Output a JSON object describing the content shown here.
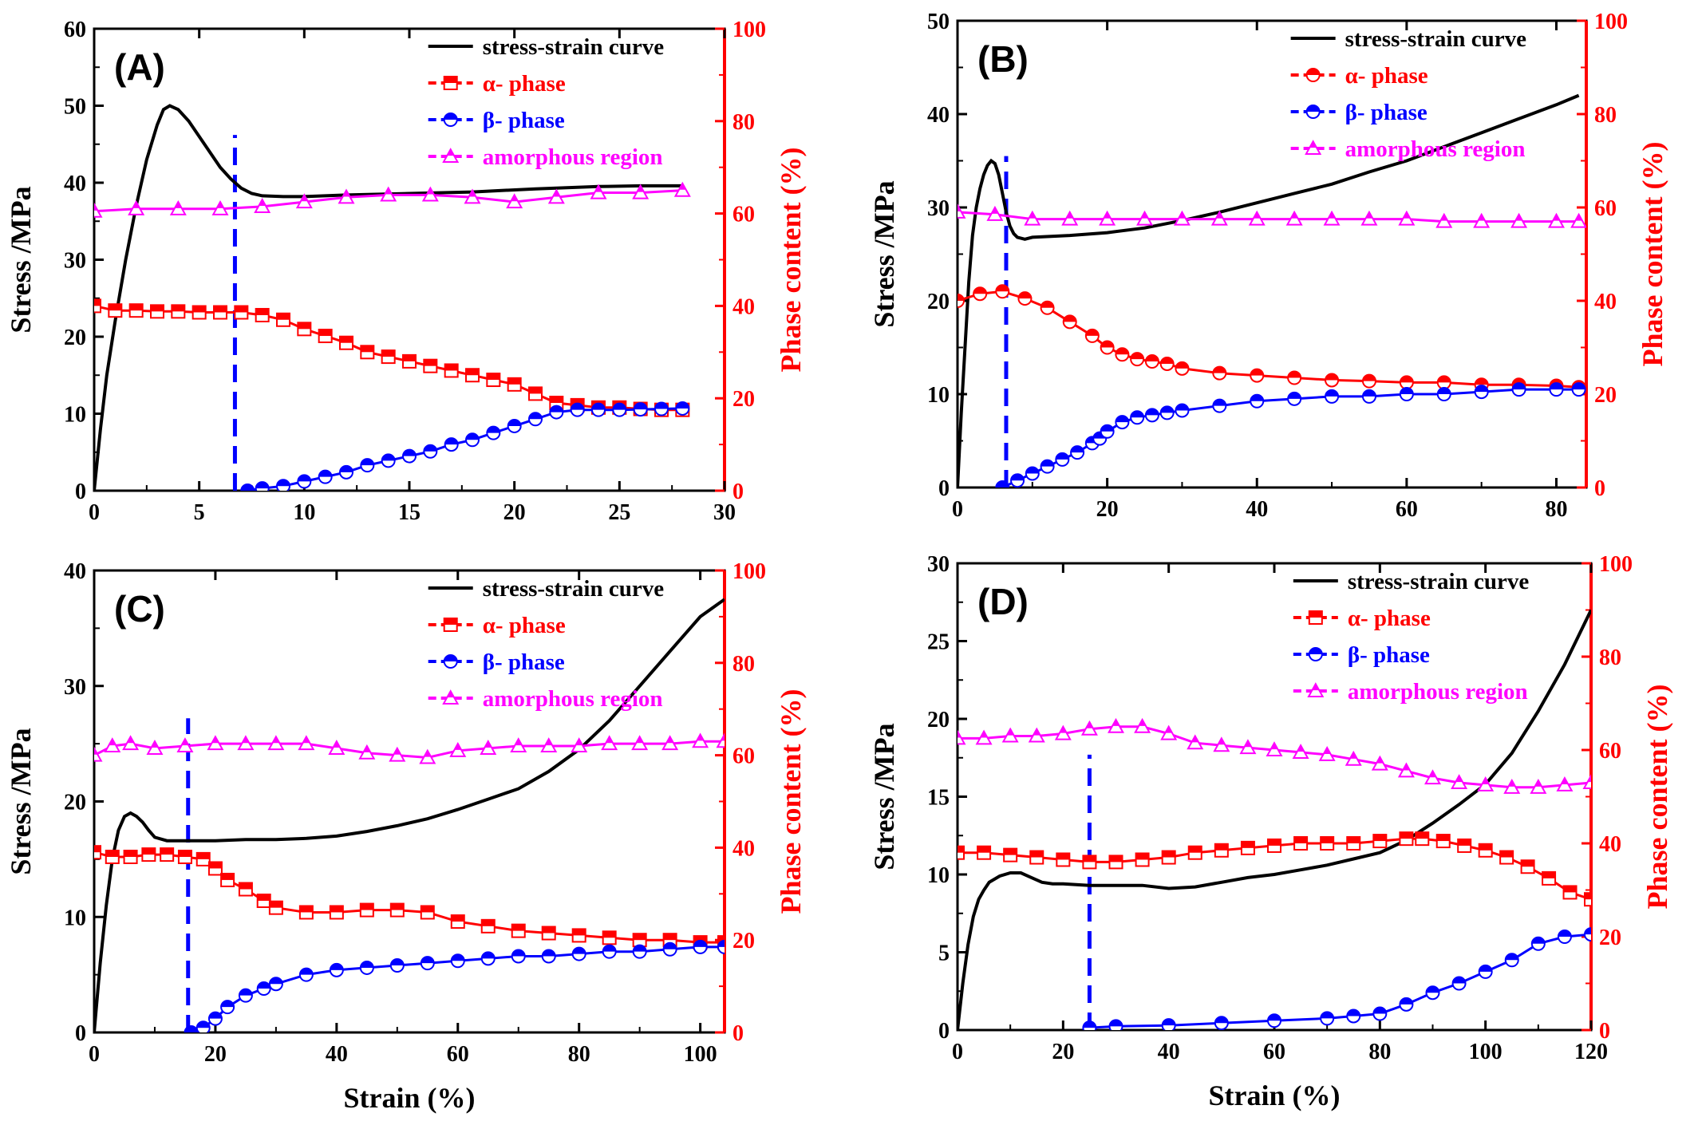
{
  "colors": {
    "stress": "#000000",
    "alpha": "#ff0000",
    "beta": "#0000ff",
    "amorphous": "#ff00ff",
    "right_axis": "#ff0000",
    "marker_line": "#0000ff"
  },
  "legend_labels": {
    "stress": "stress-strain curve",
    "alpha": "α- phase",
    "beta": "β- phase",
    "amorphous": "amorphous region"
  },
  "chart_data": [
    {
      "type": "line",
      "panel_label": "(A)",
      "xlabel": "",
      "ylabel": "Stress /MPa",
      "y2label": "Phase content (%)",
      "xlim": [
        0,
        30
      ],
      "xticks": [
        0,
        5,
        10,
        15,
        20,
        25,
        30
      ],
      "ylim": [
        0,
        60
      ],
      "yticks": [
        0,
        10,
        20,
        30,
        40,
        50,
        60
      ],
      "y2lim": [
        0,
        100
      ],
      "y2ticks": [
        0,
        20,
        40,
        60,
        80,
        100
      ],
      "legend_position": "top-right",
      "vline_x": 6.7,
      "vline_y2_range": [
        0,
        77
      ],
      "series": [
        {
          "key": "stress",
          "axis": "left",
          "marker": "none",
          "x": [
            0,
            0.3,
            0.6,
            1,
            1.5,
            2,
            2.5,
            3,
            3.3,
            3.6,
            4,
            4.5,
            5,
            5.5,
            6,
            6.5,
            7,
            7.5,
            8,
            9,
            10,
            12,
            15,
            18,
            21,
            24,
            26,
            28
          ],
          "y": [
            0,
            8,
            15,
            22,
            30,
            37,
            43,
            47.5,
            49.5,
            50,
            49.5,
            48,
            46,
            44,
            42,
            40.5,
            39.3,
            38.6,
            38.3,
            38.2,
            38.2,
            38.4,
            38.6,
            38.8,
            39.2,
            39.5,
            39.6,
            39.6
          ]
        },
        {
          "key": "alpha",
          "axis": "right",
          "marker": "square",
          "x": [
            0,
            1,
            2,
            3,
            4,
            5,
            6,
            7,
            8,
            9,
            10,
            11,
            12,
            13,
            14,
            15,
            16,
            17,
            18,
            19,
            20,
            21,
            22,
            23,
            24,
            25,
            26,
            27,
            28
          ],
          "y": [
            40,
            39,
            39,
            38.8,
            38.8,
            38.6,
            38.6,
            38.6,
            38,
            37,
            35,
            33.5,
            32,
            30,
            29,
            28,
            27,
            26,
            25,
            24,
            23,
            21,
            19,
            18.5,
            18,
            18,
            17.7,
            17.5,
            17.5
          ]
        },
        {
          "key": "beta",
          "axis": "right",
          "marker": "circle",
          "x": [
            7.3,
            8,
            9,
            10,
            11,
            12,
            13,
            14,
            15,
            16,
            17,
            18,
            19,
            20,
            21,
            22,
            23,
            24,
            25,
            26,
            27,
            28
          ],
          "y": [
            0,
            0.5,
            1,
            2,
            3,
            4,
            5.5,
            6.5,
            7.5,
            8.5,
            10,
            11,
            12.5,
            14,
            15.5,
            17,
            17.5,
            17.5,
            17.5,
            17.6,
            17.7,
            17.8
          ]
        },
        {
          "key": "amorphous",
          "axis": "right",
          "marker": "triangle",
          "x": [
            0,
            2,
            4,
            6,
            8,
            10,
            12,
            14,
            16,
            18,
            20,
            22,
            24,
            26,
            28
          ],
          "y": [
            60.5,
            61,
            61,
            61,
            61.5,
            62.5,
            63.5,
            64,
            64,
            63.5,
            62.5,
            63.5,
            64.5,
            64.5,
            65
          ]
        }
      ]
    },
    {
      "type": "line",
      "panel_label": "(B)",
      "xlabel": "",
      "ylabel": "Stress /MPa",
      "y2label": "Phase content (%)",
      "xlim": [
        0,
        84
      ],
      "xticks": [
        0,
        20,
        40,
        60,
        80
      ],
      "ylim": [
        0,
        50
      ],
      "yticks": [
        0,
        10,
        20,
        30,
        40,
        50
      ],
      "y2lim": [
        0,
        100
      ],
      "y2ticks": [
        0,
        20,
        40,
        60,
        80,
        100
      ],
      "legend_position": "top-right",
      "vline_x": 6.5,
      "vline_y2_range": [
        0,
        71
      ],
      "series": [
        {
          "key": "stress",
          "axis": "left",
          "marker": "none",
          "x": [
            0,
            0.5,
            1,
            1.5,
            2,
            2.5,
            3,
            3.5,
            4,
            4.5,
            5,
            5.5,
            6,
            6.5,
            7,
            7.5,
            8,
            9,
            10,
            15,
            20,
            25,
            30,
            35,
            40,
            45,
            50,
            55,
            60,
            65,
            70,
            75,
            80,
            83
          ],
          "y": [
            0,
            8,
            15,
            22,
            27,
            30,
            32,
            33.5,
            34.5,
            35,
            34.7,
            33.5,
            31.5,
            29.5,
            28,
            27.2,
            26.8,
            26.6,
            26.8,
            27,
            27.3,
            27.8,
            28.6,
            29.5,
            30.5,
            31.5,
            32.5,
            33.8,
            35,
            36.5,
            38,
            39.5,
            41,
            42
          ]
        },
        {
          "key": "alpha",
          "axis": "right",
          "marker": "half-circle",
          "x": [
            0,
            3,
            6,
            9,
            12,
            15,
            18,
            20,
            22,
            24,
            26,
            28,
            30,
            35,
            40,
            45,
            50,
            55,
            60,
            65,
            70,
            75,
            80,
            83
          ],
          "y": [
            40,
            41.5,
            42,
            40.5,
            38.5,
            35.5,
            32.5,
            30,
            28.5,
            27.5,
            27,
            26.5,
            25.5,
            24.5,
            24,
            23.5,
            23,
            22.8,
            22.5,
            22.5,
            22,
            22,
            21.8,
            21.5
          ]
        },
        {
          "key": "beta",
          "axis": "right",
          "marker": "half-circle",
          "x": [
            6,
            8,
            10,
            12,
            14,
            16,
            18,
            19,
            20,
            22,
            24,
            26,
            28,
            30,
            35,
            40,
            45,
            50,
            55,
            60,
            65,
            70,
            75,
            80,
            83
          ],
          "y": [
            0,
            1.5,
            3,
            4.5,
            6,
            7.5,
            9.5,
            10.5,
            12,
            14,
            15,
            15.5,
            16,
            16.5,
            17.5,
            18.5,
            19,
            19.5,
            19.5,
            20,
            20,
            20.5,
            21,
            21,
            21
          ]
        },
        {
          "key": "amorphous",
          "axis": "right",
          "marker": "triangle",
          "x": [
            0,
            5,
            10,
            15,
            20,
            25,
            30,
            35,
            40,
            45,
            50,
            55,
            60,
            65,
            70,
            75,
            80,
            83
          ],
          "y": [
            59,
            58.5,
            57.5,
            57.5,
            57.5,
            57.5,
            57.5,
            57.5,
            57.5,
            57.5,
            57.5,
            57.5,
            57.5,
            57,
            57,
            57,
            57,
            57
          ]
        }
      ]
    },
    {
      "type": "line",
      "panel_label": "(C)",
      "xlabel": "Strain (%)",
      "ylabel": "Stress /MPa",
      "y2label": "Phase content (%)",
      "xlim": [
        0,
        104
      ],
      "xticks": [
        0,
        20,
        40,
        60,
        80,
        100
      ],
      "ylim": [
        0,
        40
      ],
      "yticks": [
        0,
        10,
        20,
        30,
        40
      ],
      "y2lim": [
        0,
        100
      ],
      "y2ticks": [
        0,
        20,
        40,
        60,
        80,
        100
      ],
      "legend_position": "top-right",
      "vline_x": 15.5,
      "vline_y2_range": [
        0,
        68
      ],
      "series": [
        {
          "key": "stress",
          "axis": "left",
          "marker": "none",
          "x": [
            0,
            1,
            2,
            3,
            4,
            5,
            6,
            7,
            8,
            9,
            10,
            12,
            15,
            20,
            25,
            30,
            35,
            40,
            45,
            50,
            55,
            60,
            65,
            70,
            75,
            80,
            85,
            90,
            95,
            100,
            104
          ],
          "y": [
            0,
            6,
            11,
            15,
            17.5,
            18.7,
            19,
            18.7,
            18.2,
            17.5,
            16.9,
            16.6,
            16.6,
            16.6,
            16.7,
            16.7,
            16.8,
            17,
            17.4,
            17.9,
            18.5,
            19.3,
            20.2,
            21.1,
            22.6,
            24.5,
            27,
            30,
            33,
            36,
            37.5
          ]
        },
        {
          "key": "alpha",
          "axis": "right",
          "marker": "square",
          "x": [
            0,
            3,
            6,
            9,
            12,
            15,
            18,
            20,
            22,
            25,
            28,
            30,
            35,
            40,
            45,
            50,
            55,
            60,
            65,
            70,
            75,
            80,
            85,
            90,
            95,
            100,
            104
          ],
          "y": [
            39,
            38,
            38,
            38.5,
            38.5,
            38,
            37.5,
            35.5,
            33,
            31,
            28.5,
            27,
            26,
            26,
            26.5,
            26.5,
            26,
            24,
            23,
            22,
            21.5,
            21,
            20.5,
            20,
            20,
            19.5,
            19.5
          ]
        },
        {
          "key": "beta",
          "axis": "right",
          "marker": "circle",
          "x": [
            16,
            18,
            20,
            22,
            25,
            28,
            30,
            35,
            40,
            45,
            50,
            55,
            60,
            65,
            70,
            75,
            80,
            85,
            90,
            95,
            100,
            104
          ],
          "y": [
            0,
            1,
            3,
            5.5,
            8,
            9.5,
            10.5,
            12.5,
            13.5,
            14,
            14.5,
            15,
            15.5,
            16,
            16.5,
            16.5,
            17,
            17.5,
            17.5,
            18,
            18.5,
            18.5
          ]
        },
        {
          "key": "amorphous",
          "axis": "right",
          "marker": "triangle",
          "x": [
            0,
            3,
            6,
            10,
            15,
            20,
            25,
            30,
            35,
            40,
            45,
            50,
            55,
            60,
            65,
            70,
            75,
            80,
            85,
            90,
            95,
            100,
            104
          ],
          "y": [
            60,
            62,
            62.5,
            61.5,
            62,
            62.5,
            62.5,
            62.5,
            62.5,
            61.5,
            60.5,
            60,
            59.5,
            61,
            61.5,
            62,
            62,
            62,
            62.5,
            62.5,
            62.5,
            63,
            63
          ]
        }
      ]
    },
    {
      "type": "line",
      "panel_label": "(D)",
      "xlabel": "Strain (%)",
      "ylabel": "Stress /MPa",
      "y2label": "Phase content (%)",
      "xlim": [
        0,
        120
      ],
      "xticks": [
        0,
        20,
        40,
        60,
        80,
        100,
        120
      ],
      "ylim": [
        0,
        30
      ],
      "yticks": [
        0,
        5,
        10,
        15,
        20,
        25,
        30
      ],
      "y2lim": [
        0,
        100
      ],
      "y2ticks": [
        0,
        20,
        40,
        60,
        80,
        100
      ],
      "legend_position": "top-right",
      "vline_x": 25,
      "vline_y2_range": [
        0,
        59
      ],
      "series": [
        {
          "key": "stress",
          "axis": "left",
          "marker": "none",
          "x": [
            0,
            1,
            2,
            3,
            4,
            5,
            6,
            8,
            10,
            12,
            14,
            16,
            18,
            20,
            25,
            30,
            35,
            40,
            45,
            50,
            55,
            60,
            65,
            70,
            75,
            80,
            85,
            90,
            95,
            100,
            105,
            110,
            115,
            120
          ],
          "y": [
            0,
            3,
            5.5,
            7.3,
            8.4,
            9,
            9.5,
            9.9,
            10.1,
            10.1,
            9.8,
            9.5,
            9.4,
            9.4,
            9.3,
            9.3,
            9.3,
            9.1,
            9.2,
            9.5,
            9.8,
            10,
            10.3,
            10.6,
            11,
            11.4,
            12.2,
            13.3,
            14.5,
            15.8,
            17.8,
            20.5,
            23.5,
            27
          ]
        },
        {
          "key": "alpha",
          "axis": "right",
          "marker": "square",
          "x": [
            0,
            5,
            10,
            15,
            20,
            25,
            30,
            35,
            40,
            45,
            50,
            55,
            60,
            65,
            70,
            75,
            80,
            85,
            88,
            92,
            96,
            100,
            104,
            108,
            112,
            116,
            120
          ],
          "y": [
            38,
            38,
            37.5,
            37,
            36.5,
            36,
            36,
            36.5,
            37,
            38,
            38.5,
            39,
            39.5,
            40,
            40,
            40,
            40.5,
            41,
            41,
            40.5,
            39.5,
            38.5,
            37,
            35,
            32.5,
            29.5,
            28
          ]
        },
        {
          "key": "beta",
          "axis": "right",
          "marker": "circle",
          "x": [
            25,
            30,
            40,
            50,
            60,
            70,
            75,
            80,
            85,
            90,
            95,
            100,
            105,
            110,
            115,
            120
          ],
          "y": [
            0.5,
            0.8,
            1,
            1.5,
            2,
            2.5,
            3,
            3.5,
            5.5,
            8,
            10,
            12.5,
            15,
            18.5,
            20,
            20.5
          ]
        },
        {
          "key": "amorphous",
          "axis": "right",
          "marker": "triangle",
          "x": [
            0,
            5,
            10,
            15,
            20,
            25,
            30,
            35,
            40,
            45,
            50,
            55,
            60,
            65,
            70,
            75,
            80,
            85,
            90,
            95,
            100,
            105,
            110,
            115,
            120
          ],
          "y": [
            62.5,
            62.5,
            63,
            63,
            63.5,
            64.5,
            65,
            65,
            63.5,
            61.5,
            61,
            60.5,
            60,
            59.5,
            59,
            58,
            57,
            55.5,
            54,
            53,
            52.5,
            52,
            52,
            52.5,
            53
          ]
        }
      ]
    }
  ]
}
